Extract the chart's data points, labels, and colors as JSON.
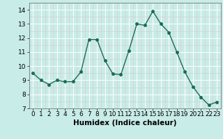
{
  "x": [
    0,
    1,
    2,
    3,
    4,
    5,
    6,
    7,
    8,
    9,
    10,
    11,
    12,
    13,
    14,
    15,
    16,
    17,
    18,
    19,
    20,
    21,
    22,
    23
  ],
  "y": [
    9.5,
    9.0,
    8.7,
    9.0,
    8.9,
    8.9,
    9.6,
    11.9,
    11.9,
    10.4,
    9.45,
    9.4,
    11.1,
    13.0,
    12.9,
    13.9,
    13.0,
    12.4,
    11.0,
    9.6,
    8.55,
    7.8,
    7.25,
    7.45
  ],
  "line_color": "#1a6b5a",
  "marker": "o",
  "marker_size": 2.5,
  "bg_color": "#c8ece8",
  "grid_major_color": "#ffffff",
  "grid_minor_color": "#ddc8c8",
  "xlabel": "Humidex (Indice chaleur)",
  "ylim": [
    7,
    14.5
  ],
  "xlim": [
    -0.5,
    23.5
  ],
  "yticks": [
    7,
    8,
    9,
    10,
    11,
    12,
    13,
    14
  ],
  "xticks": [
    0,
    1,
    2,
    3,
    4,
    5,
    6,
    7,
    8,
    9,
    10,
    11,
    12,
    13,
    14,
    15,
    16,
    17,
    18,
    19,
    20,
    21,
    22,
    23
  ],
  "tick_fontsize": 6.5,
  "xlabel_fontsize": 7.5
}
